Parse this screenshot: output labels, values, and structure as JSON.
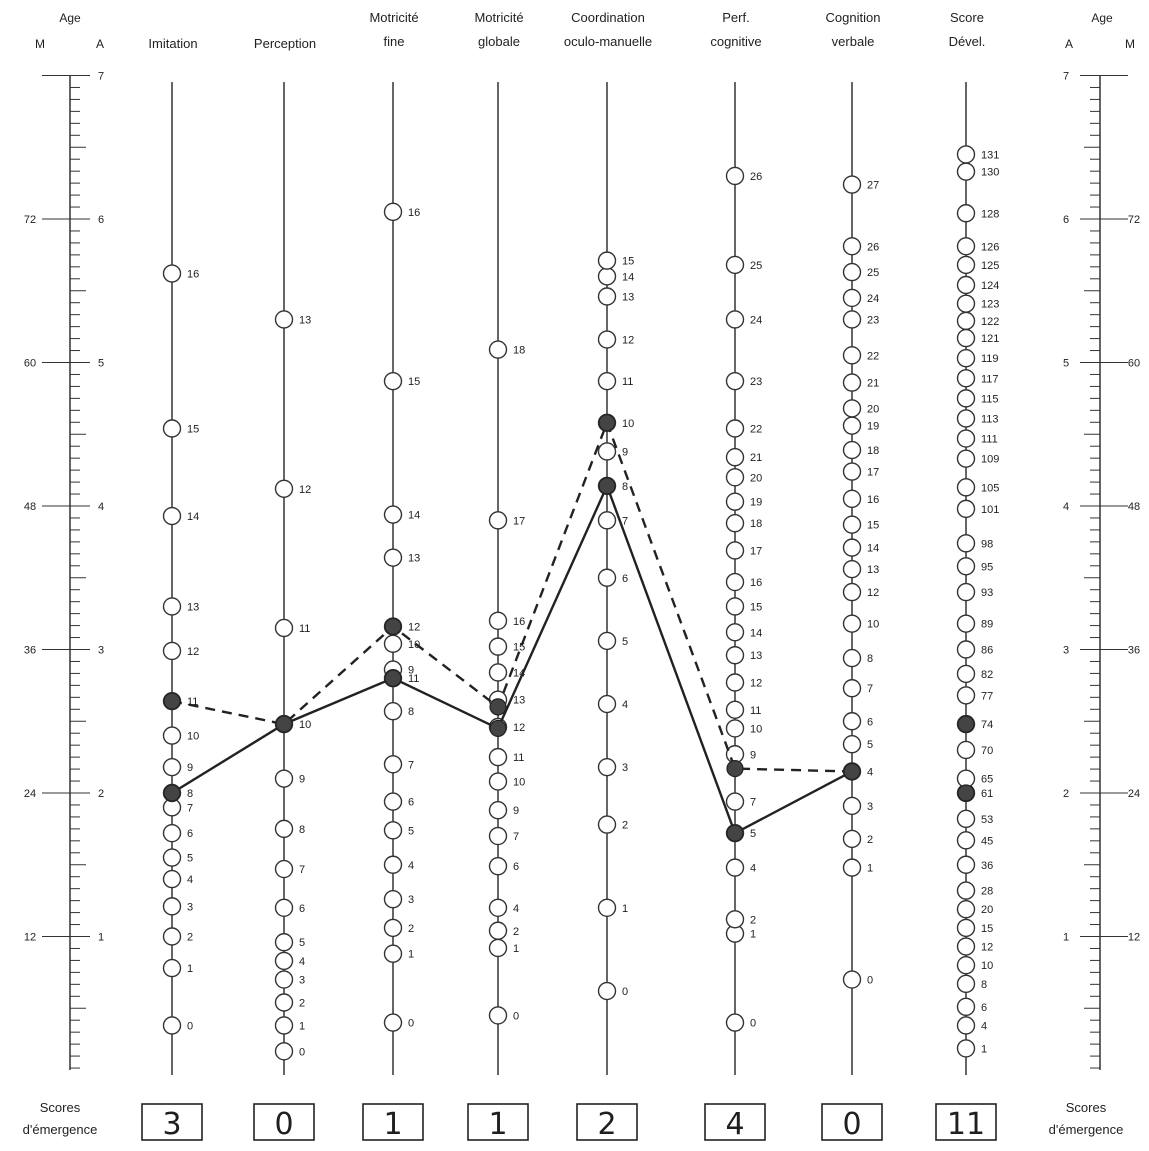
{
  "chart_data": {
    "type": "line",
    "title": "",
    "left_axis": {
      "header_top": "Age",
      "header_months": "M",
      "header_years": "A",
      "year_ticks": [
        "1",
        "2",
        "3",
        "4",
        "5",
        "6",
        "7"
      ],
      "month_ticks": [
        "12",
        "24",
        "36",
        "48",
        "60",
        "72"
      ]
    },
    "right_axis": {
      "header_top": "Age",
      "header_years": "A",
      "header_months": "M",
      "year_ticks": [
        "1",
        "2",
        "3",
        "4",
        "5",
        "6",
        "7"
      ],
      "month_ticks": [
        "12",
        "24",
        "36",
        "48",
        "60",
        "72"
      ]
    },
    "ylim_years": [
      0,
      7
    ],
    "domains": [
      {
        "label_lines": [
          "Imitation"
        ],
        "items": [
          [
            "0",
            0.38
          ],
          [
            "1",
            0.78
          ],
          [
            "2",
            1.0
          ],
          [
            "3",
            1.21
          ],
          [
            "4",
            1.4
          ],
          [
            "5",
            1.55
          ],
          [
            "6",
            1.72
          ],
          [
            "7",
            1.9
          ],
          [
            "8",
            2.0
          ],
          [
            "9",
            2.18
          ],
          [
            "10",
            2.4
          ],
          [
            "11",
            2.64
          ],
          [
            "12",
            2.99
          ],
          [
            "13",
            3.3
          ],
          [
            "14",
            3.93
          ],
          [
            "15",
            4.54
          ],
          [
            "16",
            5.62
          ]
        ]
      },
      {
        "label_lines": [
          "Perception"
        ],
        "items": [
          [
            "0",
            0.2
          ],
          [
            "1",
            0.38
          ],
          [
            "2",
            0.54
          ],
          [
            "3",
            0.7
          ],
          [
            "4",
            0.83
          ],
          [
            "5",
            0.96
          ],
          [
            "6",
            1.2
          ],
          [
            "7",
            1.47
          ],
          [
            "8",
            1.75
          ],
          [
            "9",
            2.1
          ],
          [
            "10",
            2.48
          ],
          [
            "11",
            3.15
          ],
          [
            "12",
            4.12
          ],
          [
            "13",
            5.3
          ]
        ]
      },
      {
        "label_lines": [
          "Motricité",
          "fine"
        ],
        "items": [
          [
            "0",
            0.4
          ],
          [
            "1",
            0.88
          ],
          [
            "2",
            1.06
          ],
          [
            "3",
            1.26
          ],
          [
            "4",
            1.5
          ],
          [
            "5",
            1.74
          ],
          [
            "6",
            1.94
          ],
          [
            "7",
            2.2
          ],
          [
            "8",
            2.57
          ],
          [
            "9",
            2.86
          ],
          [
            "10",
            3.04
          ],
          [
            "11",
            2.8
          ],
          [
            "12",
            3.16
          ],
          [
            "13",
            3.64
          ],
          [
            "14",
            3.94
          ],
          [
            "15",
            4.87
          ],
          [
            "16",
            6.05
          ]
        ]
      },
      {
        "label_lines": [
          "Motricité",
          "globale"
        ],
        "items": [
          [
            "0",
            0.45
          ],
          [
            "1",
            0.92
          ],
          [
            "2",
            1.04
          ],
          [
            "4",
            1.2
          ],
          [
            "6",
            1.49
          ],
          [
            "7",
            1.7
          ],
          [
            "9",
            1.88
          ],
          [
            "10",
            2.08
          ],
          [
            "11",
            2.25
          ],
          [
            "12",
            2.46
          ],
          [
            "13",
            2.65
          ],
          [
            "14",
            2.84
          ],
          [
            "15",
            3.02
          ],
          [
            "16",
            3.2
          ],
          [
            "17",
            3.9
          ],
          [
            "18",
            5.09
          ]
        ]
      },
      {
        "label_lines": [
          "Coordination",
          "oculo-manuelle"
        ],
        "items": [
          [
            "0",
            0.62
          ],
          [
            "1",
            1.2
          ],
          [
            "2",
            1.78
          ],
          [
            "3",
            2.18
          ],
          [
            "4",
            2.62
          ],
          [
            "5",
            3.06
          ],
          [
            "6",
            3.5
          ],
          [
            "7",
            3.9
          ],
          [
            "8",
            4.14
          ],
          [
            "9",
            4.38
          ],
          [
            "10",
            4.58
          ],
          [
            "11",
            4.87
          ],
          [
            "12",
            5.16
          ],
          [
            "13",
            5.46
          ],
          [
            "14",
            5.6
          ],
          [
            "15",
            5.71
          ]
        ]
      },
      {
        "label_lines": [
          "Perf.",
          "cognitive"
        ],
        "items": [
          [
            "0",
            0.4
          ],
          [
            "1",
            1.02
          ],
          [
            "2",
            1.12
          ],
          [
            "4",
            1.48
          ],
          [
            "5",
            1.72
          ],
          [
            "7",
            1.94
          ],
          [
            "9",
            2.27
          ],
          [
            "10",
            2.45
          ],
          [
            "11",
            2.58
          ],
          [
            "12",
            2.77
          ],
          [
            "13",
            2.96
          ],
          [
            "14",
            3.12
          ],
          [
            "15",
            3.3
          ],
          [
            "16",
            3.47
          ],
          [
            "17",
            3.69
          ],
          [
            "18",
            3.88
          ],
          [
            "19",
            4.03
          ],
          [
            "20",
            4.2
          ],
          [
            "21",
            4.34
          ],
          [
            "22",
            4.54
          ],
          [
            "23",
            4.87
          ],
          [
            "24",
            5.3
          ],
          [
            "25",
            5.68
          ],
          [
            "26",
            6.3
          ]
        ]
      },
      {
        "label_lines": [
          "Cognition",
          "verbale"
        ],
        "items": [
          [
            "0",
            0.7
          ],
          [
            "1",
            1.48
          ],
          [
            "2",
            1.68
          ],
          [
            "3",
            1.91
          ],
          [
            "4",
            2.15
          ],
          [
            "5",
            2.34
          ],
          [
            "6",
            2.5
          ],
          [
            "7",
            2.73
          ],
          [
            "8",
            2.94
          ],
          [
            "10",
            3.18
          ],
          [
            "12",
            3.4
          ],
          [
            "13",
            3.56
          ],
          [
            "14",
            3.71
          ],
          [
            "15",
            3.87
          ],
          [
            "16",
            4.05
          ],
          [
            "17",
            4.24
          ],
          [
            "18",
            4.39
          ],
          [
            "19",
            4.56
          ],
          [
            "20",
            4.68
          ],
          [
            "21",
            4.86
          ],
          [
            "22",
            5.05
          ],
          [
            "23",
            5.3
          ],
          [
            "24",
            5.45
          ],
          [
            "25",
            5.63
          ],
          [
            "26",
            5.81
          ],
          [
            "27",
            6.24
          ]
        ]
      },
      {
        "label_lines": [
          "Score",
          "Dével."
        ],
        "items": [
          [
            "1",
            0.22
          ],
          [
            "4",
            0.38
          ],
          [
            "6",
            0.51
          ],
          [
            "8",
            0.67
          ],
          [
            "10",
            0.8
          ],
          [
            "12",
            0.93
          ],
          [
            "15",
            1.06
          ],
          [
            "20",
            1.19
          ],
          [
            "28",
            1.32
          ],
          [
            "36",
            1.5
          ],
          [
            "45",
            1.67
          ],
          [
            "53",
            1.82
          ],
          [
            "61",
            2.0
          ],
          [
            "65",
            2.1
          ],
          [
            "70",
            2.3
          ],
          [
            "74",
            2.48
          ],
          [
            "77",
            2.68
          ],
          [
            "82",
            2.83
          ],
          [
            "86",
            3.0
          ],
          [
            "89",
            3.18
          ],
          [
            "93",
            3.4
          ],
          [
            "95",
            3.58
          ],
          [
            "98",
            3.74
          ],
          [
            "101",
            3.98
          ],
          [
            "105",
            4.13
          ],
          [
            "109",
            4.33
          ],
          [
            "111",
            4.47
          ],
          [
            "113",
            4.61
          ],
          [
            "115",
            4.75
          ],
          [
            "117",
            4.89
          ],
          [
            "119",
            5.03
          ],
          [
            "121",
            5.17
          ],
          [
            "122",
            5.29
          ],
          [
            "123",
            5.41
          ],
          [
            "124",
            5.54
          ],
          [
            "125",
            5.68
          ],
          [
            "126",
            5.81
          ],
          [
            "128",
            6.04
          ],
          [
            "130",
            6.33
          ],
          [
            "131",
            6.45
          ]
        ]
      }
    ],
    "series": [
      {
        "style": "solid",
        "values": [
          2.0,
          2.48,
          2.8,
          2.45,
          4.14,
          1.72,
          2.15
        ]
      },
      {
        "style": "dashed",
        "values": [
          2.64,
          2.48,
          3.16,
          2.6,
          4.58,
          2.17,
          2.15
        ]
      }
    ],
    "filled_points": [
      [
        0,
        2.0
      ],
      [
        0,
        2.64
      ],
      [
        1,
        2.48
      ],
      [
        2,
        2.8
      ],
      [
        2,
        3.16
      ],
      [
        3,
        2.45
      ],
      [
        3,
        2.6
      ],
      [
        4,
        4.14
      ],
      [
        4,
        4.58
      ],
      [
        5,
        1.72
      ],
      [
        5,
        2.17
      ],
      [
        6,
        2.15
      ],
      [
        7,
        2.0
      ],
      [
        7,
        2.48
      ]
    ],
    "emergence": {
      "label_left_lines": [
        "Scores",
        "d'émergence"
      ],
      "label_right_lines": [
        "Scores",
        "d'émergence"
      ],
      "values": [
        "3",
        "0",
        "1",
        "1",
        "2",
        "4",
        "0",
        "11"
      ]
    },
    "grid": false,
    "legend": "none"
  }
}
